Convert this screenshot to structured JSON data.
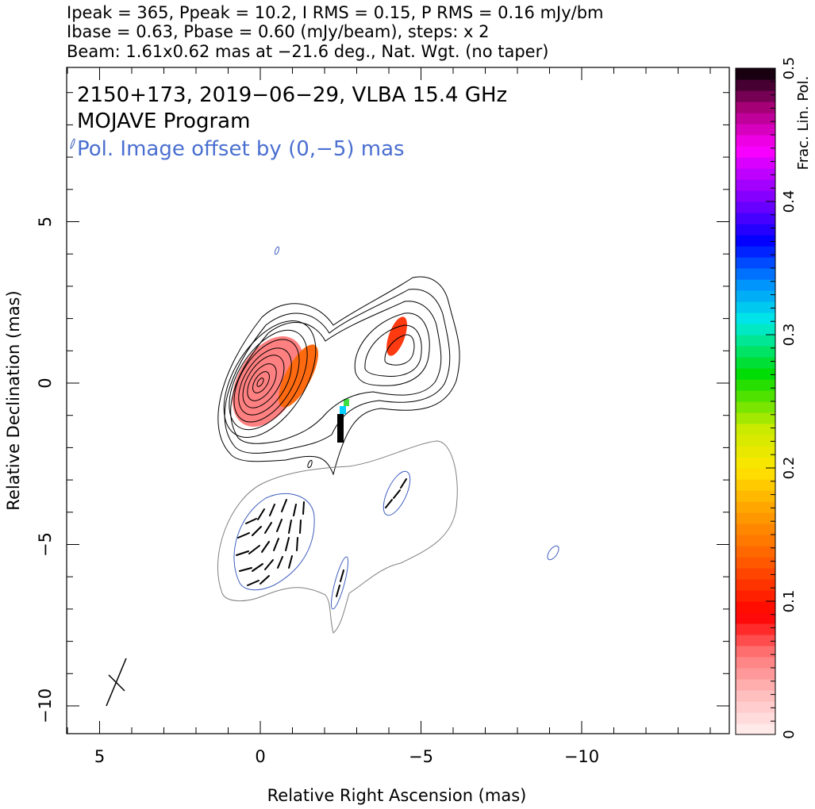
{
  "header": {
    "line1": "Ipeak = 365, Ppeak = 10.2, I RMS = 0.15, P RMS = 0.16 mJy/bm",
    "line2": "Ibase = 0.63, Pbase = 0.60 (mJy/beam), steps: x 2",
    "line3": "Beam: 1.61x0.62 mas at −21.6 deg., Nat. Wgt. (no taper)"
  },
  "plot": {
    "source_line": "2150+173, 2019−06−29, VLBA 15.4 GHz",
    "program_line": "MOJAVE Program",
    "offset_note": "Pol. Image offset by (0,−5) mas"
  },
  "colors": {
    "stokes_i_contour": "#000000",
    "offset_i_contour": "#7f7f7f",
    "pol_contour": "#3f5fbf",
    "offset_note": "#4a6fd0"
  },
  "chart_data": {
    "type": "heatmap",
    "xlabel": "Relative Right Ascension (mas)",
    "ylabel": "Relative Declination (mas)",
    "xlim": [
      6,
      -14.5
    ],
    "ylim": [
      -11,
      9.8
    ],
    "x_ticks": [
      "5",
      "0",
      "−5",
      "−10"
    ],
    "x_tick_values": [
      5,
      0,
      -5,
      -10
    ],
    "y_ticks": [
      "5",
      "0",
      "−5",
      "−10"
    ],
    "y_tick_values": [
      5,
      0,
      -5,
      -10
    ],
    "colorbar": {
      "label": "Frac. Lin. Pol.",
      "range": [
        0,
        0.5
      ],
      "ticks": [
        "0",
        "0.1",
        "0.2",
        "0.3",
        "0.4",
        "0.5"
      ],
      "tick_values": [
        0,
        0.1,
        0.2,
        0.3,
        0.4,
        0.5
      ]
    },
    "stokes_i_contours": {
      "peak_mjy_per_beam": 365,
      "base_mjy_per_beam": 0.63,
      "step_factor": 2,
      "core_center": [
        0,
        0
      ],
      "jet_knot_center": [
        -3.9,
        0.8
      ]
    },
    "beam": {
      "major_mas": 1.61,
      "minor_mas": 0.62,
      "pa_deg": -21.6,
      "center": [
        4.5,
        -9.2
      ]
    },
    "fractional_polarization_regions": [
      {
        "name": "core",
        "center": [
          0.3,
          0.1
        ],
        "frac_pol": 0.05
      },
      {
        "name": "core-edge",
        "center": [
          -1.1,
          0.4
        ],
        "frac_pol": 0.14
      },
      {
        "name": "knot",
        "center": [
          -4.1,
          1.5
        ],
        "frac_pol": 0.12
      },
      {
        "name": "jet-spot",
        "center": [
          -2.5,
          -1.1
        ],
        "frac_pol": 0.5
      }
    ],
    "polarization_image_offset_mas": [
      0,
      -5
    ]
  }
}
